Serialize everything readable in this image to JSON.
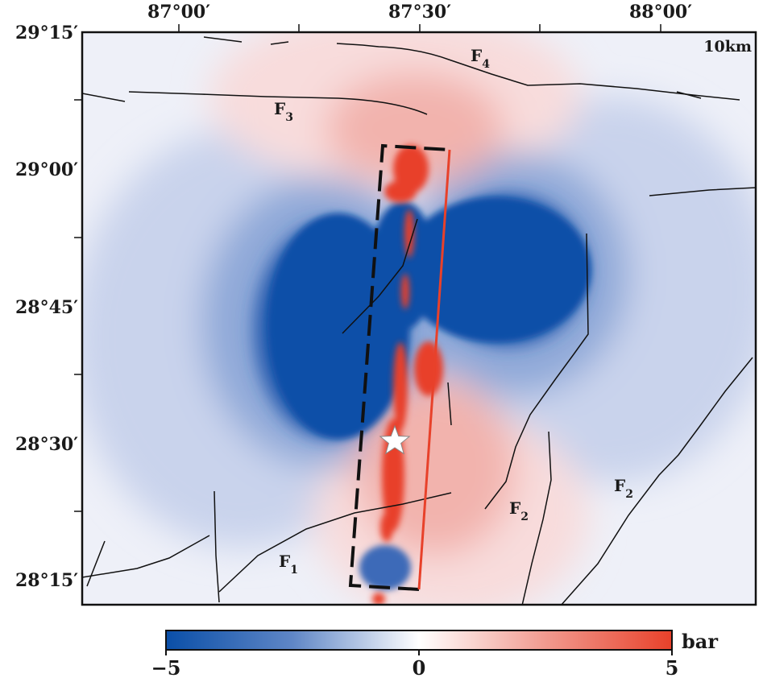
{
  "map": {
    "depth_label": "10km",
    "lon_ticks": [
      "87°00′",
      "87°30′",
      "88°00′"
    ],
    "lat_ticks": [
      "29°15′",
      "29°00′",
      "28°45′",
      "28°30′",
      "28°15′"
    ],
    "faults": [
      {
        "name": "F",
        "sub": "1"
      },
      {
        "name": "F",
        "sub": "2"
      },
      {
        "name": "F",
        "sub": "2"
      },
      {
        "name": "F",
        "sub": "3"
      },
      {
        "name": "F",
        "sub": "4"
      }
    ],
    "epicenter_icon": "star-icon",
    "colors": {
      "negative": "#0a4fa8",
      "neutral": "#ffffff",
      "positive": "#e8412a",
      "rupture_trace": "#e8412a"
    }
  },
  "colorbar": {
    "min_label": "−5",
    "mid_label": "0",
    "max_label": "5",
    "unit": "bar",
    "min": -5,
    "max": 5
  }
}
